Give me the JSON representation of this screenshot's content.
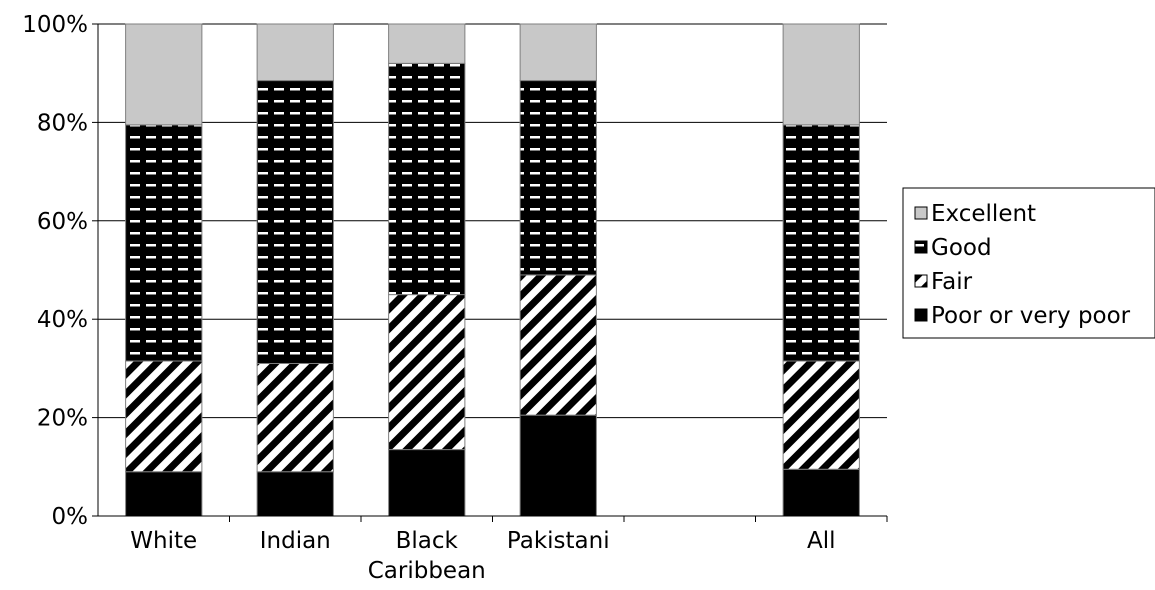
{
  "chart_data": {
    "type": "bar",
    "stacked": true,
    "categories": [
      "White",
      "Indian",
      "Black\nCaribbean",
      "Pakistani",
      "",
      "All"
    ],
    "series": [
      {
        "name": "Poor or very poor",
        "values": [
          9,
          9,
          13.5,
          20.5,
          null,
          9.5
        ],
        "color": "#000000",
        "pattern": "solid"
      },
      {
        "name": "Fair",
        "values": [
          22.5,
          22,
          31.5,
          28.5,
          null,
          22
        ],
        "color": "#000000",
        "pattern": "diagonal-stripes"
      },
      {
        "name": "Good",
        "values": [
          48,
          57.5,
          47,
          39.5,
          null,
          48
        ],
        "color": "#000000",
        "pattern": "black-with-white-dashes"
      },
      {
        "name": "Excellent",
        "values": [
          20.5,
          11.5,
          8,
          11.5,
          null,
          20.5
        ],
        "color": "#c8c8c8",
        "pattern": "solid"
      }
    ],
    "ylim": [
      0,
      100
    ],
    "yticks": [
      "0%",
      "20%",
      "40%",
      "60%",
      "80%",
      "100%"
    ],
    "xlabel": "",
    "ylabel": "",
    "grid": true,
    "legend": {
      "position": "right",
      "order": [
        "Excellent",
        "Good",
        "Fair",
        "Poor or very poor"
      ]
    }
  }
}
